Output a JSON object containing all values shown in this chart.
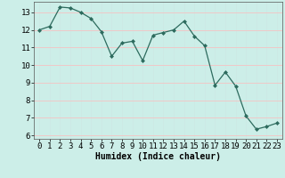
{
  "x": [
    0,
    1,
    2,
    3,
    4,
    5,
    6,
    7,
    8,
    9,
    10,
    11,
    12,
    13,
    14,
    15,
    16,
    17,
    18,
    19,
    20,
    21,
    22,
    23
  ],
  "y": [
    12.0,
    12.2,
    13.3,
    13.25,
    13.0,
    12.65,
    11.9,
    10.5,
    11.25,
    11.35,
    10.25,
    11.7,
    11.85,
    12.0,
    12.5,
    11.65,
    11.1,
    8.85,
    9.6,
    8.8,
    7.1,
    6.35,
    6.5,
    6.7
  ],
  "line_color": "#2d6b5e",
  "marker": "D",
  "marker_size": 2.0,
  "bg_color": "#cceee8",
  "grid_color_major": "#f0c8c8",
  "grid_color_minor": "#cce8e4",
  "xlabel": "Humidex (Indice chaleur)",
  "xlabel_fontsize": 7,
  "tick_fontsize": 6.5,
  "xlim": [
    -0.5,
    23.5
  ],
  "ylim": [
    5.8,
    13.6
  ],
  "yticks": [
    6,
    7,
    8,
    9,
    10,
    11,
    12,
    13
  ],
  "xticks": [
    0,
    1,
    2,
    3,
    4,
    5,
    6,
    7,
    8,
    9,
    10,
    11,
    12,
    13,
    14,
    15,
    16,
    17,
    18,
    19,
    20,
    21,
    22,
    23
  ]
}
